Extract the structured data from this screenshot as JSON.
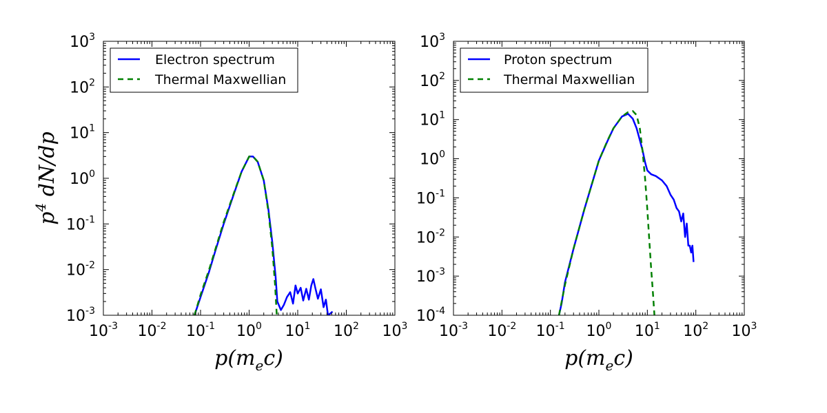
{
  "chart_data": [
    {
      "type": "line",
      "panel": "left",
      "xscale": "log",
      "yscale": "log",
      "xlim": [
        0.001,
        1000
      ],
      "ylim": [
        0.001,
        1000
      ],
      "xlabel": "p(m_e c)",
      "ylabel": "p^4 dN/dp",
      "x_ticks": [
        0.001,
        0.01,
        0.1,
        1,
        10,
        100,
        1000
      ],
      "y_ticks": [
        0.001,
        0.01,
        0.1,
        1,
        10,
        100,
        1000
      ],
      "legend_placement": "top-left",
      "series": [
        {
          "name": "Electron spectrum",
          "color": "#0000ff",
          "style": "solid",
          "x": [
            0.075,
            0.1,
            0.15,
            0.2,
            0.3,
            0.5,
            0.7,
            1.0,
            1.2,
            1.5,
            2.0,
            2.5,
            3.0,
            3.5,
            3.8,
            4.5,
            5.2,
            6.0,
            7.0,
            8.0,
            9.0,
            10,
            11.5,
            13,
            15,
            17,
            19,
            21,
            23,
            26,
            30,
            34,
            38,
            42,
            47,
            52
          ],
          "values": [
            0.001,
            0.0025,
            0.009,
            0.025,
            0.1,
            0.5,
            1.4,
            3.0,
            3.0,
            2.3,
            0.9,
            0.2,
            0.04,
            0.007,
            0.002,
            0.0013,
            0.0017,
            0.0025,
            0.0032,
            0.0018,
            0.0045,
            0.003,
            0.004,
            0.0021,
            0.0038,
            0.0022,
            0.0045,
            0.0062,
            0.004,
            0.0023,
            0.0037,
            0.0015,
            0.0022,
            0.001,
            0.0011,
            0.0012
          ]
        },
        {
          "name": "Thermal Maxwellian",
          "color": "#008000",
          "style": "dashed",
          "x": [
            0.075,
            0.1,
            0.15,
            0.2,
            0.3,
            0.5,
            0.7,
            1.0,
            1.2,
            1.5,
            2.0,
            2.5,
            3.0,
            3.4,
            3.7
          ],
          "values": [
            0.001,
            0.0028,
            0.01,
            0.027,
            0.11,
            0.52,
            1.4,
            3.0,
            3.0,
            2.3,
            0.9,
            0.18,
            0.03,
            0.005,
            0.001
          ]
        }
      ]
    },
    {
      "type": "line",
      "panel": "right",
      "xscale": "log",
      "yscale": "log",
      "xlim": [
        0.001,
        1000
      ],
      "ylim": [
        0.0001,
        1000
      ],
      "xlabel": "p(m_e c)",
      "ylabel": "",
      "x_ticks": [
        0.001,
        0.01,
        0.1,
        1,
        10,
        100,
        1000
      ],
      "y_ticks": [
        0.0001,
        0.001,
        0.01,
        0.1,
        1,
        10,
        100,
        1000
      ],
      "legend_placement": "top-left",
      "series": [
        {
          "name": "Proton spectrum",
          "color": "#0000ff",
          "style": "solid",
          "x": [
            0.15,
            0.17,
            0.2,
            0.3,
            0.5,
            1.0,
            1.5,
            2.0,
            3.0,
            4.0,
            5.0,
            6.0,
            7.0,
            8.0,
            9.0,
            10,
            12,
            15,
            20,
            25,
            30,
            35,
            40,
            45,
            50,
            55,
            60,
            65,
            70,
            75,
            80,
            85,
            90
          ],
          "values": [
            0.0001,
            0.0002,
            0.0007,
            0.005,
            0.05,
            0.9,
            2.8,
            6.0,
            12.0,
            14.0,
            10.5,
            6.0,
            3.0,
            1.6,
            0.8,
            0.5,
            0.4,
            0.36,
            0.28,
            0.2,
            0.12,
            0.09,
            0.055,
            0.045,
            0.025,
            0.04,
            0.01,
            0.022,
            0.006,
            0.006,
            0.004,
            0.006,
            0.0023
          ]
        },
        {
          "name": "Thermal Maxwellian",
          "color": "#008000",
          "style": "dashed",
          "x": [
            0.15,
            0.2,
            0.3,
            0.5,
            1.0,
            1.5,
            2.0,
            3.0,
            4.0,
            5.0,
            6.0,
            7.0,
            8.0,
            9.0,
            10,
            11,
            12,
            13,
            14
          ],
          "values": [
            0.0001,
            0.0006,
            0.005,
            0.05,
            0.9,
            2.9,
            6.0,
            12.0,
            15.5,
            16.5,
            13.0,
            6.0,
            1.5,
            0.3,
            0.05,
            0.008,
            0.0015,
            0.0004,
            0.0001
          ]
        }
      ]
    }
  ]
}
